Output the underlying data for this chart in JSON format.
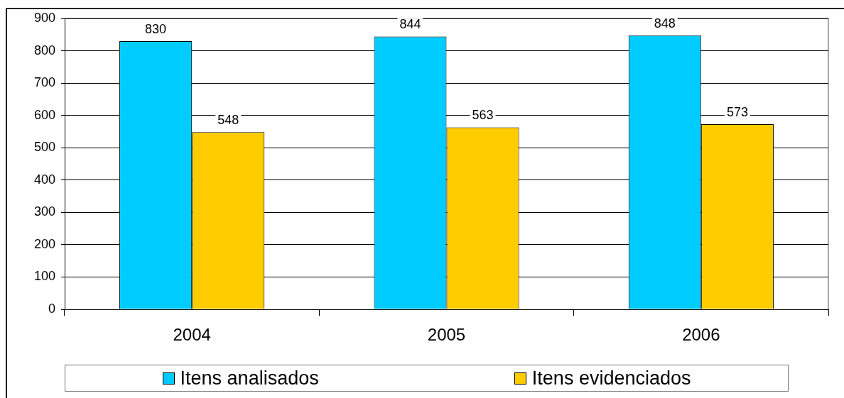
{
  "chart_data": {
    "type": "bar",
    "categories": [
      "2004",
      "2005",
      "2006"
    ],
    "series": [
      {
        "name": "Itens analisados",
        "color": "#00ccff",
        "values": [
          830,
          844,
          848
        ]
      },
      {
        "name": "Itens evidenciados",
        "color": "#ffcc00",
        "values": [
          548,
          563,
          573
        ]
      }
    ],
    "ylim": [
      0,
      900
    ],
    "yticks": [
      0,
      100,
      200,
      300,
      400,
      500,
      600,
      700,
      800,
      900
    ],
    "grid": "y",
    "legend": "bottom",
    "data_labels": true
  }
}
